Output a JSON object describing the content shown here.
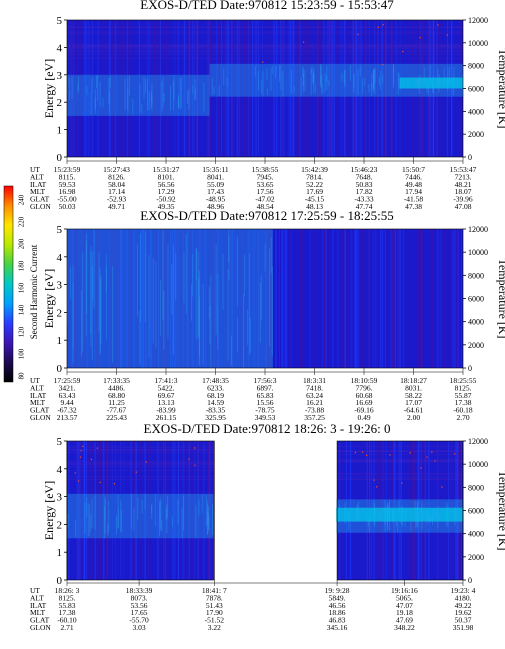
{
  "colors": {
    "background": "#ffffff",
    "deep_blue": "#1a1acc",
    "mid_blue": "#1f3cff",
    "light_blue": "#27aaf0",
    "cyan": "#00c8e8",
    "purple": "#4a0f9a",
    "violet_grid": "#5e29b8",
    "red_dot": "#ff4a2a",
    "black": "#000000"
  },
  "colorbar": {
    "label": "Second Harmonic Current",
    "ticks": [
      "240",
      "220",
      "200",
      "180",
      "160",
      "140",
      "120",
      "100",
      "80"
    ],
    "stops": [
      "#ff0000",
      "#ff8c00",
      "#ffe600",
      "#b8e800",
      "#46d246",
      "#00c8c8",
      "#00a0ff",
      "#2a3cff",
      "#3c16b4",
      "#1c0a50",
      "#000000"
    ]
  },
  "panels": [
    {
      "title": "EXOS-D/TED   Date:970812  15:23:59 - 15:53:47",
      "ylabel_left": "Energy [eV]",
      "ylabel_right": "Temperature [K]",
      "row_labels": [
        "UT",
        "ALT",
        "ILAT",
        "MLT",
        "GLAT",
        "GLON"
      ],
      "columns": [
        [
          "15:23:59",
          "8115.",
          "59.53",
          "16.98",
          "-55.00",
          "50.03"
        ],
        [
          "15:27:43",
          "8126.",
          "58.04",
          "17.14",
          "-52.93",
          "49.71"
        ],
        [
          "15:31:27",
          "8101.",
          "56.56",
          "17.29",
          "-50.92",
          "49.35"
        ],
        [
          "15:35:11",
          "8041.",
          "55.09",
          "17.43",
          "-48.95",
          "48.96"
        ],
        [
          "15:38:55",
          "7945.",
          "53.65",
          "17.56",
          "-47.02",
          "48.54"
        ],
        [
          "15:42:39",
          "7814.",
          "52.22",
          "17.69",
          "-45.15",
          "48.13"
        ],
        [
          "15:46:23",
          "7648.",
          "50.83",
          "17.82",
          "-43.33",
          "47.74"
        ],
        [
          "15:50:7",
          "7446.",
          "49.48",
          "17.94",
          "-41.58",
          "47.38"
        ],
        [
          "15:53:47",
          "7213.",
          "48.21",
          "18.07",
          "-39.96",
          "47.08"
        ]
      ]
    },
    {
      "title": "EXOS-D/TED   Date:970812  17:25:59 - 18:25:55",
      "ylabel_left": "Energy [eV]",
      "ylabel_right": "Temperature [K]",
      "row_labels": [
        "UT",
        "ALT",
        "ILAT",
        "MLT",
        "GLAT",
        "GLON"
      ],
      "columns": [
        [
          "17:25:59",
          "3421.",
          "63.43",
          "9.44",
          "-67.32",
          "213.57"
        ],
        [
          "17:33:35",
          "4486.",
          "68.80",
          "11.25",
          "-77.67",
          "225.43"
        ],
        [
          "17:41:3",
          "5422.",
          "69.67",
          "13.13",
          "-83.99",
          "261.15"
        ],
        [
          "17:48:35",
          "6233.",
          "68.19",
          "14.59",
          "-83.35",
          "325.95"
        ],
        [
          "17:56:3",
          "6897.",
          "65.83",
          "15.56",
          "-78.75",
          "349.53"
        ],
        [
          "18:3:31",
          "7418.",
          "63.24",
          "16.21",
          "-73.88",
          "357.25"
        ],
        [
          "18:10:59",
          "7796.",
          "60.68",
          "16.69",
          "-69.16",
          "0.49"
        ],
        [
          "18:18:27",
          "8031.",
          "58.22",
          "17.07",
          "-64.61",
          "2.00"
        ],
        [
          "18:25:55",
          "8125.",
          "55.87",
          "17.38",
          "-60.18",
          "2.70"
        ]
      ]
    },
    {
      "title": "EXOS-D/TED   Date:970812  18:26: 3 - 19:26: 0",
      "ylabel_left": "Energy [eV]",
      "ylabel_right": "Temperature [K]",
      "row_labels": [
        "UT",
        "ALT",
        "ILAT",
        "MLT",
        "GLAT",
        "GLON"
      ],
      "columns": [
        [
          "18:26: 3",
          "8125.",
          "55.83",
          "17.38",
          "-60.10",
          "2.71"
        ],
        [
          "18:33:39",
          "8073.",
          "53.56",
          "17.65",
          "-55.70",
          "3.03"
        ],
        [
          "18:41: 7",
          "7878.",
          "51.43",
          "17.90",
          "-51.52",
          "3.22"
        ],
        [
          "19: 9:28",
          "5849.",
          "46.56",
          "18.86",
          "46.83",
          "345.16"
        ],
        [
          "19:16:16",
          "5065.",
          "47.07",
          "19.18",
          "47.69",
          "348.22"
        ],
        [
          "19:23: 4",
          "4180.",
          "49.22",
          "19.62",
          "50.37",
          "351.98"
        ]
      ]
    }
  ],
  "chart_data": [
    {
      "type": "heatmap",
      "title": "EXOS-D/TED   Date:970812  15:23:59 - 15:53:47",
      "ylabel": "Energy [eV]",
      "ylabel_right": "Temperature [K]",
      "ylim": [
        0,
        5
      ],
      "ylim_right": [
        0,
        12000
      ],
      "yticks": [
        "0",
        "1",
        "2",
        "3",
        "4",
        "5"
      ],
      "yticks_right": [
        "0",
        "2000",
        "4000",
        "6000",
        "8000",
        "10000",
        "12000"
      ],
      "x_ticks": [
        "15:23:59",
        "15:27:43",
        "15:31:27",
        "15:35:11",
        "15:38:55",
        "15:42:39",
        "15:46:23",
        "15:50:7",
        "15:53:47"
      ],
      "bands": [
        {
          "x_start": 0.0,
          "x_end": 0.36,
          "e_low": 1.5,
          "e_high": 3.0,
          "level": "light"
        },
        {
          "x_start": 0.36,
          "x_end": 1.0,
          "e_low": 2.2,
          "e_high": 3.4,
          "level": "light"
        },
        {
          "x_start": 0.84,
          "x_end": 1.0,
          "e_low": 2.5,
          "e_high": 2.9,
          "level": "cyan"
        }
      ]
    },
    {
      "type": "heatmap",
      "title": "EXOS-D/TED   Date:970812  17:25:59 - 18:25:55",
      "ylabel": "Energy [eV]",
      "ylabel_right": "Temperature [K]",
      "ylim": [
        0,
        5
      ],
      "ylim_right": [
        0,
        12000
      ],
      "yticks": [
        "0",
        "1",
        "2",
        "3",
        "4",
        "5"
      ],
      "yticks_right": [
        "0",
        "2000",
        "4000",
        "6000",
        "8000",
        "10000",
        "12000"
      ],
      "x_ticks": [
        "17:25:59",
        "17:33:35",
        "17:41:3",
        "17:48:35",
        "17:56:3",
        "18:3:31",
        "18:10:59",
        "18:18:27",
        "18:25:55"
      ],
      "bands": [
        {
          "x_start": 0.0,
          "x_end": 0.52,
          "e_low": 0.0,
          "e_high": 5.0,
          "level": "light"
        }
      ]
    },
    {
      "type": "heatmap",
      "title": "EXOS-D/TED   Date:970812  18:26: 3 - 19:26: 0",
      "ylabel": "Energy [eV]",
      "ylabel_right": "Temperature [K]",
      "ylim": [
        0,
        5
      ],
      "ylim_right": [
        0,
        12000
      ],
      "yticks": [
        "0",
        "1",
        "2",
        "3",
        "4",
        "5"
      ],
      "yticks_right": [
        "0",
        "2000",
        "4000",
        "6000",
        "8000",
        "10000",
        "12000"
      ],
      "x_ticks": [
        "18:26: 3",
        "18:33:39",
        "18:41: 7",
        "19: 9:28",
        "19:16:16",
        "19:23: 4"
      ],
      "data_gap": [
        "18:41: 7",
        "19: 9:28"
      ],
      "bands": [
        {
          "x_start": 0.0,
          "x_end": 0.37,
          "e_low": 1.5,
          "e_high": 3.1,
          "level": "light"
        },
        {
          "x_start": 0.68,
          "x_end": 1.0,
          "e_low": 1.7,
          "e_high": 2.9,
          "level": "light"
        },
        {
          "x_start": 0.68,
          "x_end": 1.0,
          "e_low": 2.1,
          "e_high": 2.6,
          "level": "cyan"
        }
      ]
    }
  ]
}
